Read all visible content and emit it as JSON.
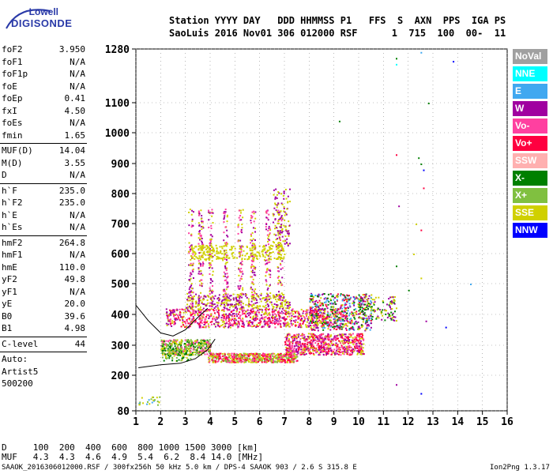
{
  "logo": {
    "top": "Lowell",
    "bottom": "DIGISONDE"
  },
  "header": {
    "line1": "Station YYYY DAY   DDD HHMMSS P1   FFS  S  AXN  PPS  IGA PS",
    "line2": "SaoLuis 2016 Nov01 306 012000 RSF      1  715  100  00-  11"
  },
  "params": {
    "group1": [
      {
        "k": "foF2",
        "v": "3.950"
      },
      {
        "k": "foF1",
        "v": "N/A"
      },
      {
        "k": "foF1p",
        "v": "N/A"
      },
      {
        "k": "foE",
        "v": "N/A"
      },
      {
        "k": "foEp",
        "v": "0.41"
      },
      {
        "k": "fxI",
        "v": "4.50"
      },
      {
        "k": "foEs",
        "v": "N/A"
      },
      {
        "k": "fmin",
        "v": "1.65"
      }
    ],
    "group2": [
      {
        "k": "MUF(D)",
        "v": "14.04"
      },
      {
        "k": "M(D)",
        "v": "3.55"
      },
      {
        "k": "D",
        "v": "N/A"
      }
    ],
    "group3": [
      {
        "k": "h`F",
        "v": "235.0"
      },
      {
        "k": "h`F2",
        "v": "235.0"
      },
      {
        "k": "h`E",
        "v": "N/A"
      },
      {
        "k": "h`Es",
        "v": "N/A"
      }
    ],
    "group4": [
      {
        "k": "hmF2",
        "v": "264.8"
      },
      {
        "k": "hmF1",
        "v": "N/A"
      },
      {
        "k": "hmE",
        "v": "110.0"
      },
      {
        "k": "yF2",
        "v": "49.8"
      },
      {
        "k": "yF1",
        "v": "N/A"
      },
      {
        "k": "yE",
        "v": "20.0"
      },
      {
        "k": "B0",
        "v": "39.6"
      },
      {
        "k": "B1",
        "v": "4.98"
      }
    ],
    "clevel": {
      "k": "C-level",
      "v": "44"
    },
    "auto": [
      "Auto:",
      "Artist5",
      "500200"
    ]
  },
  "footer": {
    "d_row": "D     100  200  400  600  800 1000 1500 3000 [km]",
    "muf_row": "MUF   4.3  4.3  4.6  4.9  5.4  6.2  8.4 14.0 [MHz]",
    "file_line": "SAAOK_2016306012000.RSF / 300fx256h 50 kHz 5.0 km / DPS-4 SAAOK 903 / 2.6 S 315.8 E",
    "version": "Ion2Png 1.3.17"
  },
  "legend": [
    {
      "label": "NoVal",
      "color": "#a0a0a0"
    },
    {
      "label": "NNE",
      "color": "#00ffff"
    },
    {
      "label": "E",
      "color": "#40a8f0"
    },
    {
      "label": "W",
      "color": "#a000a0"
    },
    {
      "label": "Vo-",
      "color": "#ff40a0"
    },
    {
      "label": "Vo+",
      "color": "#ff0040"
    },
    {
      "label": "SSW",
      "color": "#ffb0b0"
    },
    {
      "label": "X-",
      "color": "#008000"
    },
    {
      "label": "X+",
      "color": "#80c040"
    },
    {
      "label": "SSE",
      "color": "#d0d000"
    },
    {
      "label": "NNW",
      "color": "#0000ff"
    }
  ],
  "chart_data": {
    "type": "scatter",
    "title": "",
    "xlabel": "",
    "ylabel": "",
    "x_ticks": [
      1,
      2,
      3,
      4,
      5,
      6,
      7,
      8,
      9,
      10,
      11,
      12,
      13,
      14,
      15,
      16
    ],
    "y_ticks": [
      80,
      200,
      300,
      400,
      500,
      600,
      700,
      800,
      900,
      1000,
      1100,
      1280
    ],
    "xlim": [
      1,
      16
    ],
    "ylim": [
      80,
      1280
    ],
    "grid": true,
    "legend_position": "right",
    "clusters": [
      {
        "name": "F-trace",
        "color": "#ff0040",
        "x": [
          3.9,
          4.5,
          5.0,
          5.5,
          6.0,
          6.5,
          7.0,
          7.5,
          8.0,
          8.5,
          9.0,
          9.5,
          10.0
        ],
        "y": [
          250,
          255,
          260,
          262,
          265,
          270,
          285,
          300,
          310,
          320,
          320,
          330,
          340
        ]
      },
      {
        "name": "O-trace",
        "color": "#a000a0",
        "x": [
          2.2,
          2.8,
          3.5,
          4.0,
          4.6,
          5.2,
          5.8,
          6.4,
          7.0,
          7.6,
          8.2,
          8.8
        ],
        "y": [
          380,
          385,
          380,
          378,
          380,
          385,
          390,
          392,
          395,
          400,
          402,
          410
        ]
      },
      {
        "name": "spread-upper",
        "color": "#d0d000",
        "x": [
          3.2,
          3.6,
          4.0,
          4.5,
          5.0,
          5.5,
          6.0,
          6.5,
          7.0
        ],
        "y": [
          610,
          640,
          590,
          605,
          595,
          600,
          605,
          620,
          640
        ]
      },
      {
        "name": "echoes",
        "color": "#d0d000",
        "x": [
          2.0,
          2.5,
          3.0,
          3.5,
          4.0
        ],
        "y": [
          280,
          300,
          320,
          290,
          275
        ]
      },
      {
        "name": "sparse",
        "color": "#008000",
        "x": [
          11.5,
          12.3,
          12.5,
          12.8
        ],
        "y": [
          1250,
          900,
          880,
          1100
        ]
      }
    ],
    "model_curve": {
      "x": [
        1.1,
        2.0,
        2.8,
        3.4,
        3.9,
        4.2
      ],
      "y": [
        225,
        235,
        240,
        255,
        285,
        320
      ]
    },
    "model_curve2": {
      "x": [
        1.0,
        1.5,
        2.0,
        2.5,
        3.0,
        3.5,
        3.9
      ],
      "y": [
        430,
        380,
        340,
        330,
        350,
        390,
        420
      ]
    }
  }
}
